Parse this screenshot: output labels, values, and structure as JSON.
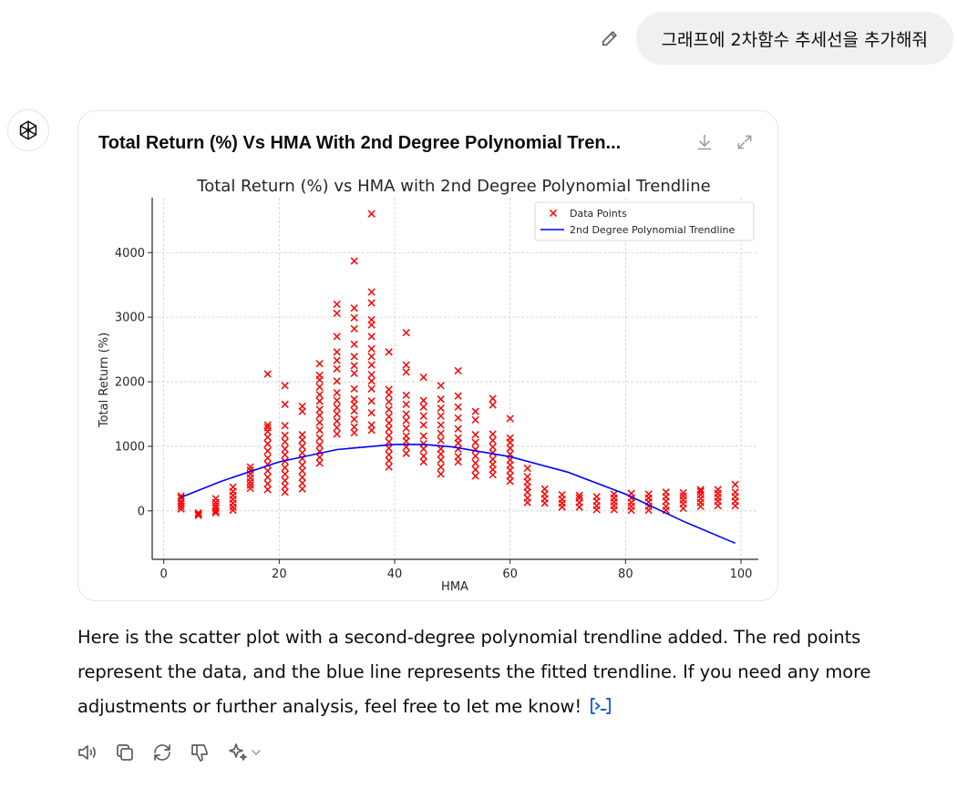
{
  "user": {
    "message": "그래프에 2차함수 추세선을 추가해줘"
  },
  "card": {
    "title": "Total Return (%) Vs HMA With 2nd Degree Polynomial Tren..."
  },
  "reply": {
    "text": "Here is the scatter plot with a second-degree polynomial trendline added. The red points represent the data, and the blue line represents the fitted trendline. If you need any more adjustments or further analysis, feel free to let me know!"
  },
  "icons": {
    "edit": "pencil-icon",
    "avatar": "openai-logo-icon",
    "download": "download-icon",
    "expand": "expand-icon",
    "code": "code-icon",
    "read_aloud": "speaker-icon",
    "copy": "copy-icon",
    "regenerate": "refresh-icon",
    "dislike": "thumbs-down-icon",
    "model": "sparkle-icon",
    "chevron": "chevron-down-icon"
  },
  "colors": {
    "points": "#ff0000",
    "trendline": "#0000ff",
    "link": "#1a5fd6"
  },
  "chart_data": {
    "type": "scatter",
    "title": "Total Return (%) vs HMA with 2nd Degree Polynomial Trendline",
    "xlabel": "HMA",
    "ylabel": "Total Return (%)",
    "xlim": [
      -2,
      103
    ],
    "ylim": [
      -750,
      4850
    ],
    "xticks": [
      0,
      20,
      40,
      60,
      80,
      100
    ],
    "yticks": [
      0,
      1000,
      2000,
      3000,
      4000
    ],
    "grid": true,
    "legend_position": "top-right",
    "series": [
      {
        "name": "Data Points",
        "marker": "x",
        "columns": [
          {
            "x": 3,
            "y": [
              30,
              70,
              110,
              150,
              200,
              230
            ]
          },
          {
            "x": 6,
            "y": [
              -70,
              -50,
              -30
            ]
          },
          {
            "x": 9,
            "y": [
              -30,
              0,
              40,
              80,
              130,
              190
            ]
          },
          {
            "x": 12,
            "y": [
              10,
              60,
              120,
              180,
              240,
              300,
              370
            ]
          },
          {
            "x": 15,
            "y": [
              350,
              400,
              450,
              510,
              570,
              630,
              680
            ]
          },
          {
            "x": 18,
            "y": [
              330,
              420,
              520,
              620,
              720,
              820,
              930,
              1040,
              1140,
              1230,
              1290,
              1330,
              2120
            ]
          },
          {
            "x": 21,
            "y": [
              290,
              380,
              470,
              570,
              670,
              770,
              870,
              960,
              1070,
              1170,
              1320,
              1650,
              1940
            ]
          },
          {
            "x": 24,
            "y": [
              340,
              430,
              520,
              620,
              710,
              810,
              900,
              1000,
              1100,
              1180,
              1540,
              1620
            ]
          },
          {
            "x": 27,
            "y": [
              740,
              830,
              920,
              1020,
              1130,
              1250,
              1370,
              1480,
              1570,
              1700,
              1800,
              1920,
              2030,
              2100,
              2280
            ]
          },
          {
            "x": 30,
            "y": [
              1190,
              1290,
              1390,
              1500,
              1600,
              1710,
              1830,
              2010,
              2200,
              2330,
              2460,
              2700,
              3060,
              3200
            ]
          },
          {
            "x": 33,
            "y": [
              1210,
              1300,
              1420,
              1550,
              1650,
              1730,
              1890,
              2130,
              2250,
              2390,
              2580,
              2820,
              2990,
              3140,
              3870
            ]
          },
          {
            "x": 36,
            "y": [
              1250,
              1330,
              1520,
              1700,
              1890,
              2010,
              2110,
              2260,
              2390,
              2510,
              2700,
              2880,
              2960,
              3220,
              3390,
              4600
            ]
          },
          {
            "x": 39,
            "y": [
              680,
              780,
              870,
              970,
              1070,
              1170,
              1270,
              1360,
              1460,
              1570,
              1690,
              1800,
              1880,
              2460
            ]
          },
          {
            "x": 42,
            "y": [
              890,
              990,
              1080,
              1160,
              1280,
              1400,
              1500,
              1650,
              1790,
              2150,
              2260,
              2760
            ]
          },
          {
            "x": 45,
            "y": [
              760,
              850,
              960,
              1040,
              1160,
              1330,
              1470,
              1610,
              1710,
              2070
            ]
          },
          {
            "x": 48,
            "y": [
              570,
              680,
              790,
              880,
              960,
              1090,
              1200,
              1330,
              1470,
              1590,
              1730,
              1940
            ]
          },
          {
            "x": 51,
            "y": [
              760,
              840,
              960,
              1050,
              1130,
              1270,
              1440,
              1610,
              1780,
              2170
            ]
          },
          {
            "x": 54,
            "y": [
              540,
              640,
              740,
              850,
              950,
              1060,
              1180,
              1410,
              1540
            ]
          },
          {
            "x": 57,
            "y": [
              560,
              640,
              720,
              800,
              900,
              990,
              1090,
              1190,
              1640,
              1740
            ]
          },
          {
            "x": 60,
            "y": [
              460,
              540,
              630,
              710,
              790,
              880,
              970,
              1060,
              1130,
              1430
            ]
          },
          {
            "x": 63,
            "y": [
              130,
              200,
              290,
              370,
              450,
              530,
              660
            ]
          },
          {
            "x": 66,
            "y": [
              120,
              190,
              260,
              340
            ]
          },
          {
            "x": 69,
            "y": [
              60,
              120,
              180,
              250
            ]
          },
          {
            "x": 72,
            "y": [
              60,
              130,
              200,
              240
            ]
          },
          {
            "x": 75,
            "y": [
              20,
              80,
              150,
              220
            ]
          },
          {
            "x": 78,
            "y": [
              20,
              80,
              140,
              200,
              260
            ]
          },
          {
            "x": 81,
            "y": [
              10,
              70,
              130,
              200,
              270
            ]
          },
          {
            "x": 84,
            "y": [
              10,
              70,
              140,
              200,
              260
            ]
          },
          {
            "x": 87,
            "y": [
              10,
              70,
              150,
              220,
              290
            ]
          },
          {
            "x": 90,
            "y": [
              40,
              110,
              170,
              230,
              280
            ]
          },
          {
            "x": 93,
            "y": [
              70,
              130,
              190,
              250,
              300,
              330
            ]
          },
          {
            "x": 96,
            "y": [
              80,
              150,
              210,
              270,
              330
            ]
          },
          {
            "x": 99,
            "y": [
              80,
              150,
              220,
              290,
              410
            ]
          }
        ]
      },
      {
        "name": "2nd Degree Polynomial Trendline",
        "type": "line",
        "x": [
          3,
          10,
          20,
          30,
          40,
          45,
          50,
          60,
          70,
          80,
          90,
          99
        ],
        "y": [
          210,
          460,
          760,
          950,
          1030,
          1030,
          990,
          840,
          600,
          260,
          -160,
          -500
        ]
      }
    ]
  }
}
